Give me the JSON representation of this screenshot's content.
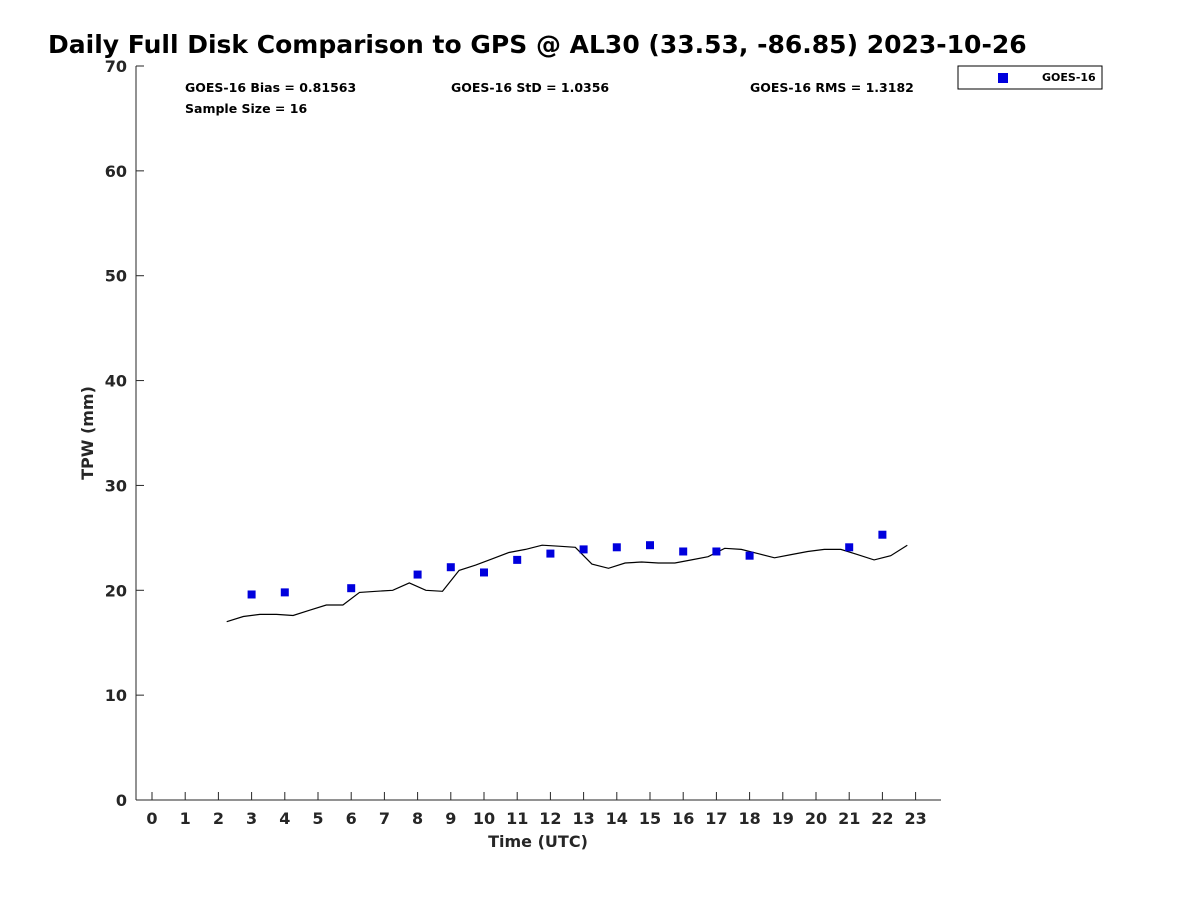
{
  "chart_data": {
    "type": "scatter",
    "title": "Daily Full Disk Comparison to GPS @ AL30 (33.53, -86.85) 2023-10-26",
    "xlabel": "Time (UTC)",
    "ylabel": "TPW (mm)",
    "xlim": [
      -0.5,
      23.75
    ],
    "ylim": [
      0,
      70
    ],
    "x_ticks": [
      0,
      1,
      2,
      3,
      4,
      5,
      6,
      7,
      8,
      9,
      10,
      11,
      12,
      13,
      14,
      15,
      16,
      17,
      18,
      19,
      20,
      21,
      22,
      23
    ],
    "y_ticks": [
      0,
      10,
      20,
      30,
      40,
      50,
      60,
      70
    ],
    "grid": false,
    "legend_position": "top-right",
    "legend": [
      "GOES-16"
    ],
    "stats": {
      "bias": "GOES-16 Bias = 0.81563",
      "std": "GOES-16 StD = 1.0356",
      "rms": "GOES-16 RMS = 1.3182",
      "sample": "Sample Size = 16"
    },
    "series": [
      {
        "name": "GOES-16",
        "marker": "square",
        "color": "#0000dd",
        "x": [
          3,
          4,
          6,
          8,
          9,
          10,
          11,
          12,
          13,
          14,
          15,
          16,
          17,
          18,
          21,
          22
        ],
        "y": [
          19.6,
          19.8,
          20.2,
          21.5,
          22.2,
          21.7,
          22.9,
          23.5,
          23.9,
          24.1,
          24.3,
          23.7,
          23.7,
          23.3,
          24.1,
          25.3
        ]
      },
      {
        "marker": "line",
        "color": "#000000",
        "x": [
          2.25,
          2.75,
          3.25,
          3.75,
          4.25,
          4.75,
          5.25,
          5.75,
          6.25,
          6.75,
          7.25,
          7.75,
          8.25,
          8.75,
          9.25,
          9.75,
          10.25,
          10.75,
          11.25,
          11.75,
          12.25,
          12.75,
          13.25,
          13.75,
          14.25,
          14.75,
          15.25,
          15.75,
          16.25,
          16.75,
          17.25,
          17.75,
          18.25,
          18.75,
          19.25,
          19.75,
          20.25,
          20.75,
          21.25,
          21.75,
          22.25,
          22.75
        ],
        "y": [
          17.0,
          17.5,
          17.7,
          17.7,
          17.6,
          18.1,
          18.6,
          18.6,
          19.8,
          19.9,
          20.0,
          20.7,
          20.0,
          19.9,
          21.9,
          22.4,
          23.0,
          23.6,
          23.9,
          24.3,
          24.2,
          24.1,
          22.5,
          22.1,
          22.6,
          22.7,
          22.6,
          22.6,
          22.9,
          23.2,
          24.0,
          23.9,
          23.5,
          23.1,
          23.4,
          23.7,
          23.9,
          23.9,
          23.4,
          22.9,
          23.3,
          24.3
        ]
      }
    ]
  }
}
